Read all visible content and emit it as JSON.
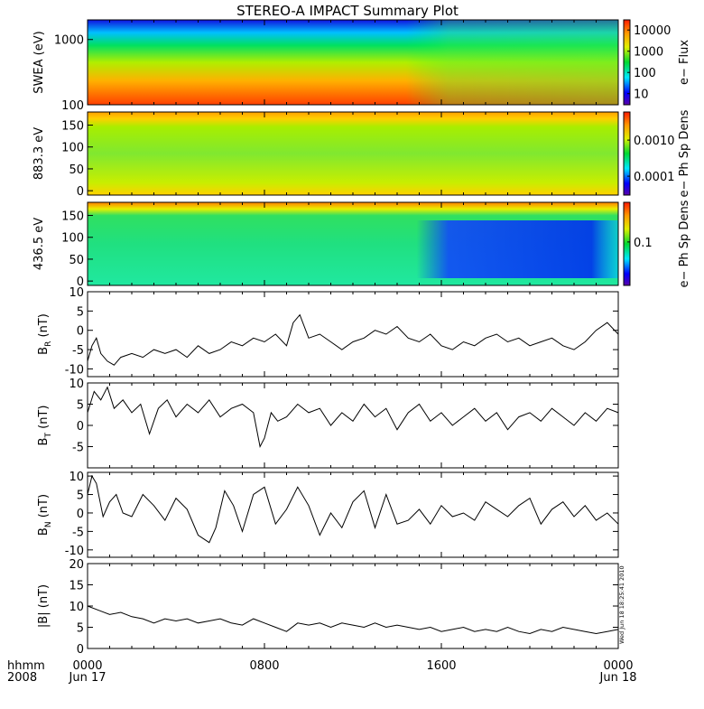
{
  "title": "STEREO-A IMPACT Summary Plot",
  "footer": {
    "time_label": "hhmm",
    "year_label": "2008"
  },
  "stamp_text": "Wed Jun 18 18:25:41 2010",
  "x_axis": {
    "ticks": [
      {
        "hour": 0,
        "label": "0000"
      },
      {
        "hour": 8,
        "label": "0800"
      },
      {
        "hour": 16,
        "label": "1600"
      },
      {
        "hour": 24,
        "label": "0000"
      }
    ],
    "date_labels": [
      {
        "hour": 0,
        "label": "Jun 17"
      },
      {
        "hour": 24,
        "label": "Jun 18"
      }
    ]
  },
  "spectrograms": [
    {
      "id": "swea",
      "ylabel": "SWEA (eV)",
      "cbar_label": "e− Flux",
      "yscale": "log",
      "ylim": [
        100,
        2000
      ],
      "yticks": [
        "100",
        "1000"
      ],
      "ytick_values": [
        100,
        1000
      ],
      "cbar_ticks": [
        "10",
        "100",
        "1000",
        "10000"
      ],
      "cbar_tick_values": [
        10,
        100,
        1000,
        10000
      ],
      "cbar_range": [
        3,
        30000
      ]
    },
    {
      "id": "pad883",
      "ylabel": "883.3 eV",
      "cbar_label": "e− Ph Sp Dens",
      "yscale": "linear",
      "ylim": [
        -10,
        180
      ],
      "yticks": [
        "0",
        "50",
        "100",
        "150"
      ],
      "ytick_values": [
        0,
        50,
        100,
        150
      ],
      "cbar_ticks": [
        "0.0001",
        "0.0010"
      ],
      "cbar_tick_values": [
        0.0001,
        0.001
      ],
      "cbar_range": [
        3e-05,
        0.006
      ]
    },
    {
      "id": "pad436",
      "ylabel": "436.5 eV",
      "cbar_label": "e− Ph Sp Dens",
      "yscale": "linear",
      "ylim": [
        -10,
        180
      ],
      "yticks": [
        "0",
        "50",
        "100",
        "150"
      ],
      "ytick_values": [
        0,
        50,
        100,
        150
      ],
      "cbar_ticks": [
        "0.1"
      ],
      "cbar_tick_values": [
        0.1
      ],
      "cbar_range": [
        0.03,
        0.3
      ]
    }
  ],
  "chart_data": [
    {
      "type": "line",
      "id": "br",
      "ylabel": "B",
      "ylabel_sub": "R",
      "ylabel_unit": "(nT)",
      "ylim": [
        -12,
        10
      ],
      "yticks": [
        "-10",
        "-5",
        "0",
        "5",
        "10"
      ],
      "ytick_values": [
        -10,
        -5,
        0,
        5,
        10
      ],
      "x": [
        0,
        0.2,
        0.4,
        0.6,
        0.9,
        1.2,
        1.5,
        2,
        2.5,
        3,
        3.5,
        4,
        4.5,
        5,
        5.5,
        6,
        6.5,
        7,
        7.5,
        8,
        8.5,
        9,
        9.3,
        9.6,
        10,
        10.5,
        11,
        11.5,
        12,
        12.5,
        13,
        13.5,
        14,
        14.5,
        15,
        15.5,
        16,
        16.5,
        17,
        17.5,
        18,
        18.5,
        19,
        19.5,
        20,
        20.5,
        21,
        21.5,
        22,
        22.5,
        23,
        23.5,
        24
      ],
      "y": [
        -8,
        -4,
        -2,
        -6,
        -8,
        -9,
        -7,
        -6,
        -7,
        -5,
        -6,
        -5,
        -7,
        -4,
        -6,
        -5,
        -3,
        -4,
        -2,
        -3,
        -1,
        -4,
        2,
        4,
        -2,
        -1,
        -3,
        -5,
        -3,
        -2,
        0,
        -1,
        1,
        -2,
        -3,
        -1,
        -4,
        -5,
        -3,
        -4,
        -2,
        -1,
        -3,
        -2,
        -4,
        -3,
        -2,
        -4,
        -5,
        -3,
        0,
        2,
        -1
      ]
    },
    {
      "type": "line",
      "id": "bt",
      "ylabel": "B",
      "ylabel_sub": "T",
      "ylabel_unit": "(nT)",
      "ylim": [
        -10,
        10
      ],
      "yticks": [
        "-5",
        "0",
        "5",
        "10"
      ],
      "ytick_values": [
        -5,
        0,
        5,
        10
      ],
      "x": [
        0,
        0.3,
        0.6,
        0.9,
        1.2,
        1.6,
        2,
        2.4,
        2.8,
        3.2,
        3.6,
        4,
        4.5,
        5,
        5.5,
        6,
        6.5,
        7,
        7.5,
        7.8,
        8,
        8.3,
        8.6,
        9,
        9.5,
        10,
        10.5,
        11,
        11.5,
        12,
        12.5,
        13,
        13.5,
        14,
        14.5,
        15,
        15.5,
        16,
        16.5,
        17,
        17.5,
        18,
        18.5,
        19,
        19.5,
        20,
        20.5,
        21,
        21.5,
        22,
        22.5,
        23,
        23.5,
        24
      ],
      "y": [
        3,
        8,
        6,
        9,
        4,
        6,
        3,
        5,
        -2,
        4,
        6,
        2,
        5,
        3,
        6,
        2,
        4,
        5,
        3,
        -5,
        -3,
        3,
        1,
        2,
        5,
        3,
        4,
        0,
        3,
        1,
        5,
        2,
        4,
        -1,
        3,
        5,
        1,
        3,
        0,
        2,
        4,
        1,
        3,
        -1,
        2,
        3,
        1,
        4,
        2,
        0,
        3,
        1,
        4,
        3
      ]
    },
    {
      "type": "line",
      "id": "bn",
      "ylabel": "B",
      "ylabel_sub": "N",
      "ylabel_unit": "(nT)",
      "ylim": [
        -12,
        11
      ],
      "yticks": [
        "-10",
        "-5",
        "0",
        "5",
        "10"
      ],
      "ytick_values": [
        -10,
        -5,
        0,
        5,
        10
      ],
      "x": [
        0,
        0.2,
        0.4,
        0.7,
        1,
        1.3,
        1.6,
        2,
        2.5,
        3,
        3.5,
        4,
        4.5,
        5,
        5.5,
        5.8,
        6.2,
        6.6,
        7,
        7.5,
        8,
        8.5,
        9,
        9.5,
        10,
        10.5,
        11,
        11.5,
        12,
        12.5,
        13,
        13.5,
        14,
        14.5,
        15,
        15.5,
        16,
        16.5,
        17,
        17.5,
        18,
        18.5,
        19,
        19.5,
        20,
        20.5,
        21,
        21.5,
        22,
        22.5,
        23,
        23.5,
        24
      ],
      "y": [
        5,
        10,
        8,
        -1,
        3,
        5,
        0,
        -1,
        5,
        2,
        -2,
        4,
        1,
        -6,
        -8,
        -4,
        6,
        2,
        -5,
        5,
        7,
        -3,
        1,
        7,
        2,
        -6,
        0,
        -4,
        3,
        6,
        -4,
        5,
        -3,
        -2,
        1,
        -3,
        2,
        -1,
        0,
        -2,
        3,
        1,
        -1,
        2,
        4,
        -3,
        1,
        3,
        -1,
        2,
        -2,
        0,
        -3
      ]
    },
    {
      "type": "line",
      "id": "bmag",
      "ylabel": "|B|",
      "ylabel_sub": "",
      "ylabel_unit": "(nT)",
      "ylim": [
        0,
        20
      ],
      "yticks": [
        "0",
        "5",
        "10",
        "15",
        "20"
      ],
      "ytick_values": [
        0,
        5,
        10,
        15,
        20
      ],
      "x": [
        0,
        0.5,
        1,
        1.5,
        2,
        2.5,
        3,
        3.5,
        4,
        4.5,
        5,
        5.5,
        6,
        6.5,
        7,
        7.5,
        8,
        8.5,
        9,
        9.5,
        10,
        10.5,
        11,
        11.5,
        12,
        12.5,
        13,
        13.5,
        14,
        14.5,
        15,
        15.5,
        16,
        16.5,
        17,
        17.5,
        18,
        18.5,
        19,
        19.5,
        20,
        20.5,
        21,
        21.5,
        22,
        22.5,
        23,
        23.5,
        24
      ],
      "y": [
        10,
        9,
        8,
        8.5,
        7.5,
        7,
        6,
        7,
        6.5,
        7,
        6,
        6.5,
        7,
        6,
        5.5,
        7,
        6,
        5,
        4,
        6,
        5.5,
        6,
        5,
        6,
        5.5,
        5,
        6,
        5,
        5.5,
        5,
        4.5,
        5,
        4,
        4.5,
        5,
        4,
        4.5,
        4,
        5,
        4,
        3.5,
        4.5,
        4,
        5,
        4.5,
        4,
        3.5,
        4,
        4.5
      ]
    }
  ]
}
